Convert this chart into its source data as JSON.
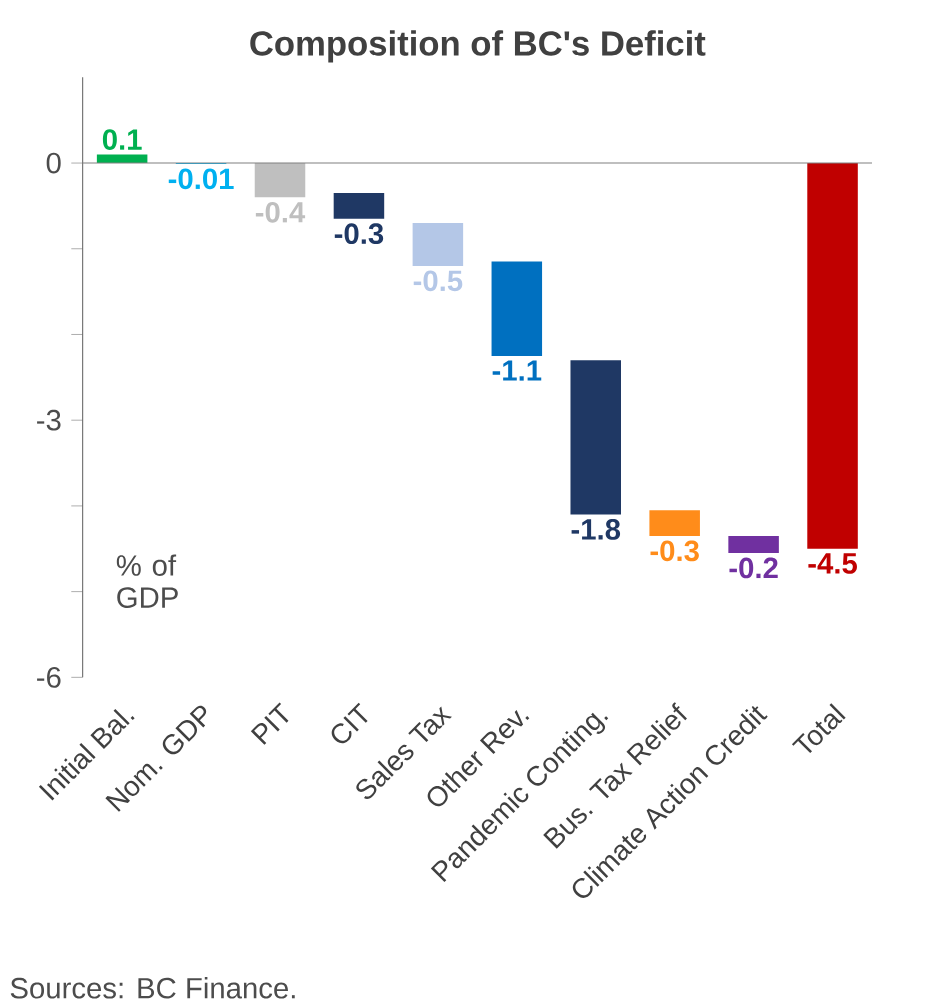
{
  "chart_data": {
    "type": "bar",
    "title": "Composition  of BC's Deficit",
    "ylabel": "% of GDP",
    "annotations": [
      "Sources: BC Finance."
    ],
    "categories": [
      "Initial Bal.",
      "Nom. GDP",
      "PIT",
      "CIT",
      "Sales Tax",
      "Other Rev.",
      "Pandemic Conting.",
      "Bus. Tax Relief",
      "Climate Action Credit",
      "Total"
    ],
    "values": [
      0.1,
      -0.01,
      -0.4,
      -0.3,
      -0.5,
      -1.1,
      -1.8,
      -0.3,
      -0.2,
      -4.5
    ],
    "base": [
      0,
      0,
      0,
      -0.35,
      -0.7,
      -1.15,
      -2.3,
      -4.05,
      -4.35,
      0
    ],
    "colors": [
      "#00b050",
      "#00b0f0",
      "#bfbfbf",
      "#1f3864",
      "#b4c7e7",
      "#0070c0",
      "#1f3864",
      "#ff8c1a",
      "#7030a0",
      "#c00000"
    ],
    "data_labels": true,
    "ref_lines": [
      {
        "axis": "y",
        "value": 0,
        "color": "#808080"
      }
    ],
    "ylim": [
      -6,
      1
    ],
    "yticks": [
      0,
      {
        "value": -1,
        "label": null
      },
      {
        "value": -2,
        "label": null
      },
      -3,
      {
        "value": -4,
        "label": null
      },
      {
        "value": -5,
        "label": null
      },
      -6
    ]
  }
}
